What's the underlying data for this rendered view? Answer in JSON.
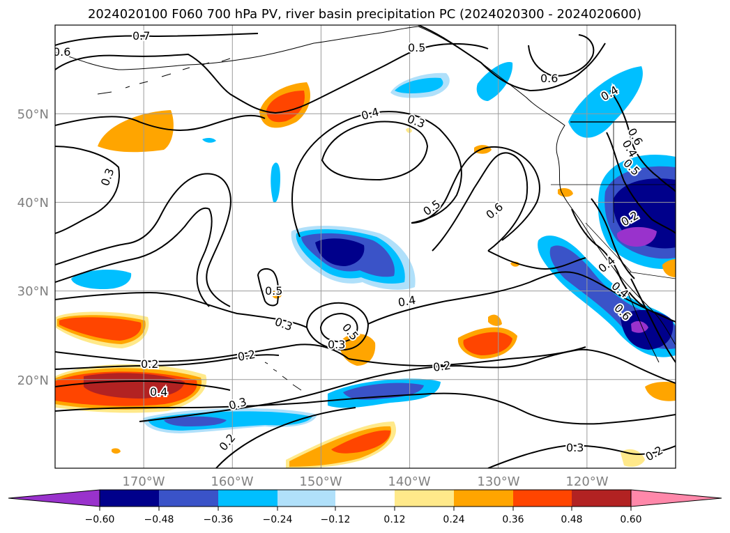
{
  "title": "2024020100 F060 700 hPa PV, river basin precipitation PC (2024020300 - 2024020600)",
  "map": {
    "lon_range": [
      -180,
      -110
    ],
    "lat_range": [
      10,
      60
    ],
    "grid": true,
    "lat_labels": [
      "50°N",
      "40°N",
      "30°N",
      "20°N"
    ],
    "lon_labels": [
      "170°W",
      "160°W",
      "150°W",
      "140°W",
      "130°W",
      "120°W"
    ],
    "contour_labels": [
      "0.7",
      "0.6",
      "0.5",
      "0.6",
      "0.4",
      "0.3",
      "0.4",
      "0.6",
      "0.3",
      "0.4",
      "0.5",
      "0.5",
      "0.6",
      "0.2",
      "0.4",
      "0.5",
      "0.3",
      "0.4",
      "0.5",
      "0.3",
      "0.2",
      "0.4",
      "0.6",
      "0.2",
      "0.2",
      "0.4",
      "0.3",
      "0.2",
      "0.3",
      "0.2"
    ]
  },
  "colorbar": {
    "ticks": [
      "−0.60",
      "−0.48",
      "−0.36",
      "−0.24",
      "−0.12",
      "0.12",
      "0.24",
      "0.36",
      "0.48",
      "0.60"
    ],
    "colors": [
      "#9932cc",
      "#00008b",
      "#3a53c8",
      "#00bfff",
      "#b0e0fa",
      "#ffffff",
      "#ffe98a",
      "#ffa500",
      "#ff4500",
      "#b22222",
      "#ff88aa"
    ],
    "extend": "both"
  },
  "palette": {
    "purple": "#9932cc",
    "navy": "#00008b",
    "royal": "#3a53c8",
    "sky": "#00bfff",
    "pale_blue": "#b0e0fa",
    "pale_yellow": "#ffe98a",
    "orange": "#ffa500",
    "red_orange": "#ff4500",
    "firebrick": "#b22222",
    "pink": "#ff88aa"
  }
}
